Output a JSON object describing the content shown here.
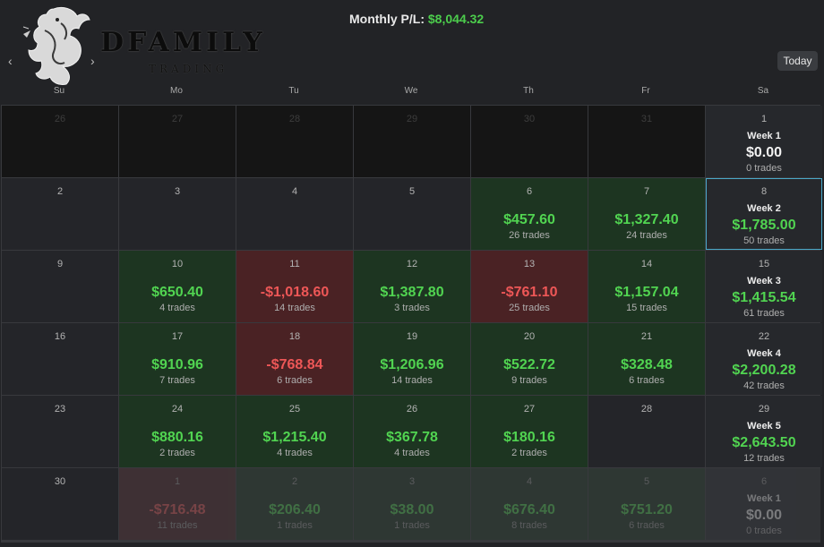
{
  "header": {
    "brand_name": "DFAMILY",
    "brand_sub": "TRADING",
    "monthly_label": "Monthly P/L:",
    "monthly_value": "$8,044.32",
    "prev_icon": "‹",
    "next_icon": "›",
    "today_label": "Today"
  },
  "weekdays": [
    "Su",
    "Mo",
    "Tu",
    "We",
    "Th",
    "Fr",
    "Sa"
  ],
  "colors": {
    "positive": "#51d451",
    "negative": "#ee5757",
    "positive_bg": "#1d3521",
    "negative_bg": "#4a2224",
    "selected_border": "#4aa8c8"
  },
  "calendar": [
    [
      {
        "day": "26",
        "state": "empty"
      },
      {
        "day": "27",
        "state": "empty"
      },
      {
        "day": "28",
        "state": "empty"
      },
      {
        "day": "29",
        "state": "empty"
      },
      {
        "day": "30",
        "state": "empty"
      },
      {
        "day": "31",
        "state": "empty"
      },
      {
        "day": "1",
        "week": "Week 1",
        "amount": "$0.00",
        "trades": "0 trades",
        "tone": "zero"
      }
    ],
    [
      {
        "day": "2"
      },
      {
        "day": "3"
      },
      {
        "day": "4"
      },
      {
        "day": "5"
      },
      {
        "day": "6",
        "amount": "$457.60",
        "trades": "26 trades",
        "tone": "pos"
      },
      {
        "day": "7",
        "amount": "$1,327.40",
        "trades": "24 trades",
        "tone": "pos"
      },
      {
        "day": "8",
        "week": "Week 2",
        "amount": "$1,785.00",
        "trades": "50 trades",
        "tone": "pos",
        "selected": true
      }
    ],
    [
      {
        "day": "9"
      },
      {
        "day": "10",
        "amount": "$650.40",
        "trades": "4 trades",
        "tone": "pos"
      },
      {
        "day": "11",
        "amount": "-$1,018.60",
        "trades": "14 trades",
        "tone": "neg"
      },
      {
        "day": "12",
        "amount": "$1,387.80",
        "trades": "3 trades",
        "tone": "pos"
      },
      {
        "day": "13",
        "amount": "-$761.10",
        "trades": "25 trades",
        "tone": "neg"
      },
      {
        "day": "14",
        "amount": "$1,157.04",
        "trades": "15 trades",
        "tone": "pos"
      },
      {
        "day": "15",
        "week": "Week 3",
        "amount": "$1,415.54",
        "trades": "61 trades",
        "tone": "pos"
      }
    ],
    [
      {
        "day": "16"
      },
      {
        "day": "17",
        "amount": "$910.96",
        "trades": "7 trades",
        "tone": "pos"
      },
      {
        "day": "18",
        "amount": "-$768.84",
        "trades": "6 trades",
        "tone": "neg"
      },
      {
        "day": "19",
        "amount": "$1,206.96",
        "trades": "14 trades",
        "tone": "pos"
      },
      {
        "day": "20",
        "amount": "$522.72",
        "trades": "9 trades",
        "tone": "pos"
      },
      {
        "day": "21",
        "amount": "$328.48",
        "trades": "6 trades",
        "tone": "pos"
      },
      {
        "day": "22",
        "week": "Week 4",
        "amount": "$2,200.28",
        "trades": "42 trades",
        "tone": "pos"
      }
    ],
    [
      {
        "day": "23"
      },
      {
        "day": "24",
        "amount": "$880.16",
        "trades": "2 trades",
        "tone": "pos"
      },
      {
        "day": "25",
        "amount": "$1,215.40",
        "trades": "4 trades",
        "tone": "pos"
      },
      {
        "day": "26",
        "amount": "$367.78",
        "trades": "4 trades",
        "tone": "pos"
      },
      {
        "day": "27",
        "amount": "$180.16",
        "trades": "2 trades",
        "tone": "pos"
      },
      {
        "day": "28"
      },
      {
        "day": "29",
        "week": "Week 5",
        "amount": "$2,643.50",
        "trades": "12 trades",
        "tone": "pos"
      }
    ],
    [
      {
        "day": "30"
      },
      {
        "day": "1",
        "amount": "-$716.48",
        "trades": "11 trades",
        "tone": "neg",
        "faded": true
      },
      {
        "day": "2",
        "amount": "$206.40",
        "trades": "1 trades",
        "tone": "pos",
        "faded": true
      },
      {
        "day": "3",
        "amount": "$38.00",
        "trades": "1 trades",
        "tone": "pos",
        "faded": true
      },
      {
        "day": "4",
        "amount": "$676.40",
        "trades": "8 trades",
        "tone": "pos",
        "faded": true
      },
      {
        "day": "5",
        "amount": "$751.20",
        "trades": "6 trades",
        "tone": "pos",
        "faded": true
      },
      {
        "day": "6",
        "week": "Week 1",
        "amount": "$0.00",
        "trades": "0 trades",
        "tone": "zero",
        "faded": true
      }
    ]
  ]
}
